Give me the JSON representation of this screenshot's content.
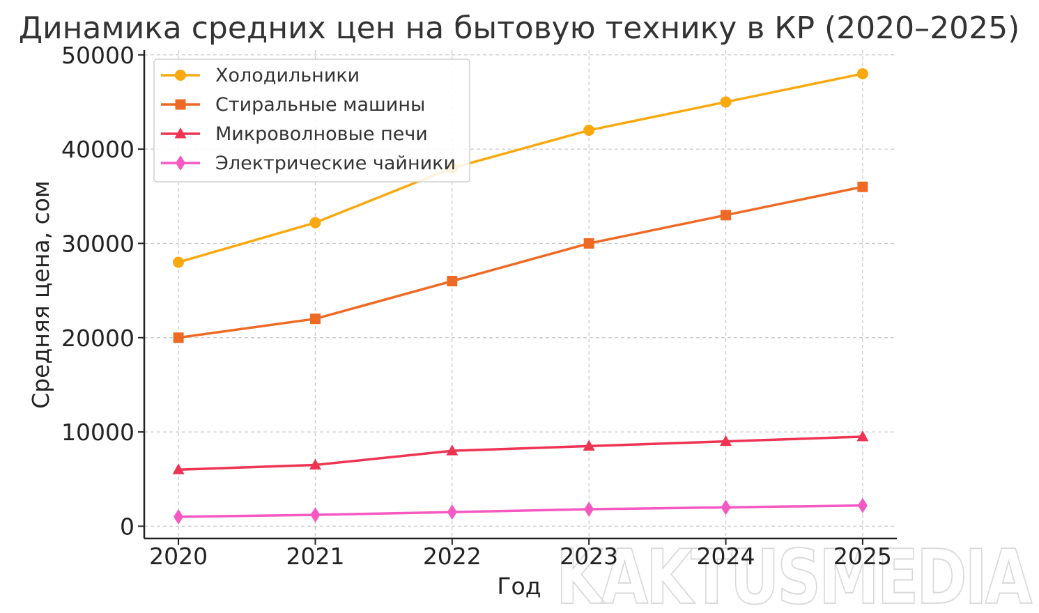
{
  "chart_data": {
    "type": "line",
    "title": "Динамика средних цен на бытовую технику в КР (2020–2025)",
    "xlabel": "Год",
    "ylabel": "Средняя цена, сом",
    "x": [
      2020,
      2021,
      2022,
      2023,
      2024,
      2025
    ],
    "x_tick_labels": [
      "2020",
      "2021",
      "2022",
      "2023",
      "2024",
      "2025"
    ],
    "y_ticks": [
      0,
      10000,
      20000,
      30000,
      40000,
      50000
    ],
    "y_tick_labels": [
      "0",
      "10000",
      "20000",
      "30000",
      "40000",
      "50000"
    ],
    "ylim": [
      -1300,
      50500
    ],
    "xlim": [
      2019.75,
      2025.25
    ],
    "grid": true,
    "legend_position": "top-left",
    "series": [
      {
        "name": "Холодильники",
        "color": "#F9A90F",
        "marker": "circle",
        "values": [
          28000,
          32200,
          38000,
          42000,
          45000,
          48000
        ]
      },
      {
        "name": "Стиральные машины",
        "color": "#EE6A24",
        "marker": "square",
        "values": [
          20000,
          22000,
          26000,
          30000,
          33000,
          36000
        ]
      },
      {
        "name": "Микроволновые печи",
        "color": "#EE3353",
        "marker": "triangle",
        "values": [
          6000,
          6500,
          8000,
          8500,
          9000,
          9500
        ]
      },
      {
        "name": "Электрические чайники",
        "color": "#F558C2",
        "marker": "diamond",
        "values": [
          1000,
          1200,
          1500,
          1800,
          2000,
          2200
        ]
      }
    ]
  },
  "watermark": "KAKTUSMEDIA"
}
